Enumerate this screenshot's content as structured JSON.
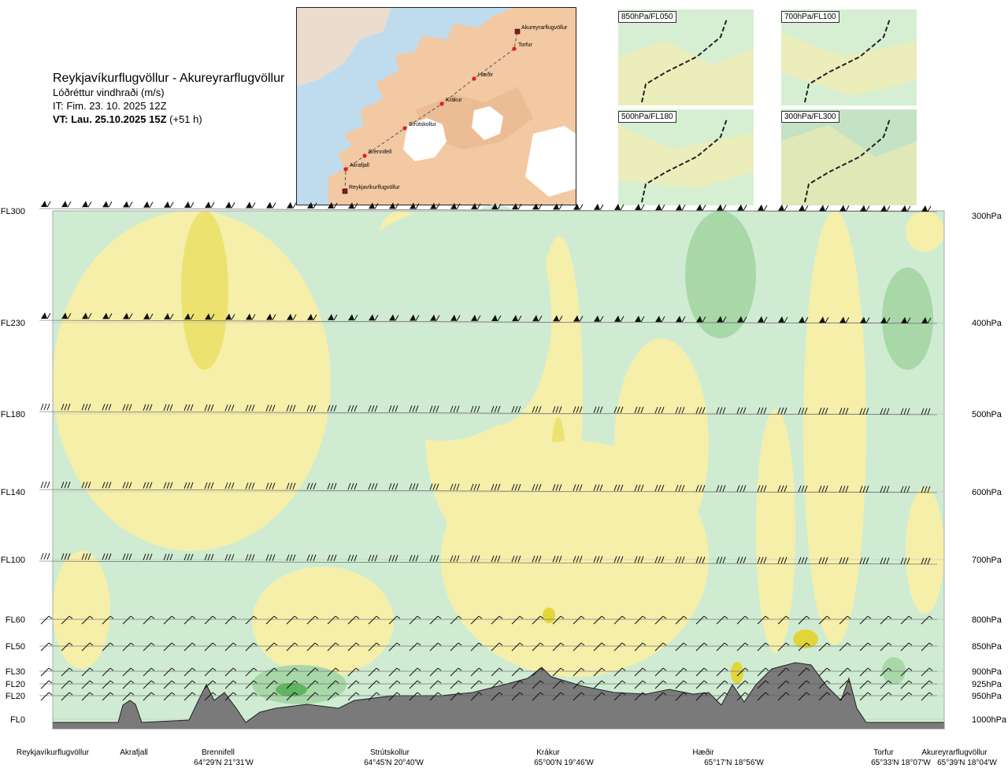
{
  "header": {
    "route": "Reykjavíkurflugvöllur - Akureyrarflugvöllur",
    "quantity": "Lóðréttur vindhraði (m/s)",
    "issue_time": "IT: Fim. 23. 10. 2025 12Z",
    "valid_label": "VT: Lau. 25.10.2025 15Z",
    "valid_offset": "(+51 h)"
  },
  "route_map": {
    "waypoints": [
      {
        "name": "Akureyrarflugvöllur",
        "kind": "airport"
      },
      {
        "name": "Torfur",
        "kind": "point"
      },
      {
        "name": "Hæðir",
        "kind": "point"
      },
      {
        "name": "Krákur",
        "kind": "point"
      },
      {
        "name": "Strútskollur",
        "kind": "point"
      },
      {
        "name": "Brennifell",
        "kind": "point"
      },
      {
        "name": "Akrafjall",
        "kind": "point"
      },
      {
        "name": "Reykjavíkurflugvöllur",
        "kind": "airport"
      }
    ],
    "colors": {
      "sea": "#bfdcef",
      "land": "#f2c9a3",
      "ice": "#ffffff",
      "route": "#555555",
      "marker": "#e02020"
    }
  },
  "insets": [
    {
      "label": "850hPa/FL050"
    },
    {
      "label": "700hPa/FL100"
    },
    {
      "label": "500hPa/FL180"
    },
    {
      "label": "300hPa/FL300"
    }
  ],
  "chart_data": {
    "type": "heatmap",
    "title": "Reykjavíkurflugvöllur - Akureyrarflugvöllur",
    "quantity": "Lóðréttur vindhraði (m/s)",
    "left_axis_labels": [
      "FL300",
      "FL230",
      "FL180",
      "FL140",
      "FL100",
      "FL60",
      "FL50",
      "FL30",
      "FL20",
      "FL20",
      "FL0"
    ],
    "right_axis_labels": [
      "300hPa",
      "400hPa",
      "500hPa",
      "600hPa",
      "700hPa",
      "800hPa",
      "850hPa",
      "900hPa",
      "925hPa",
      "950hPa",
      "1000hPa"
    ],
    "waypoints": [
      {
        "name": "Reykjavíkurflugvöllur",
        "coord": ""
      },
      {
        "name": "Akrafjall",
        "coord": ""
      },
      {
        "name": "Brennifell",
        "coord": "64°29'N 21°31'W"
      },
      {
        "name": "Strútskollur",
        "coord": "64°45'N 20°40'W"
      },
      {
        "name": "Krákur",
        "coord": "65°00'N 19°46'W"
      },
      {
        "name": "Hæðir",
        "coord": "65°17'N 18°56'W"
      },
      {
        "name": "Torfur",
        "coord": "65°33'N 18°07'W"
      },
      {
        "name": "Akureyrarflugvöllur",
        "coord": "65°39'N 18°04'W"
      }
    ],
    "colors": {
      "up_strong": "#5fb55f",
      "up_moderate": "#a8d8a8",
      "up_weak": "#cfecd3",
      "near_zero": "#fbfbe4",
      "down_weak": "#f5efaa",
      "down_moderate": "#ece270",
      "down_strong": "#e2d53a",
      "terrain": "#7a7a7a"
    },
    "grid": true
  }
}
